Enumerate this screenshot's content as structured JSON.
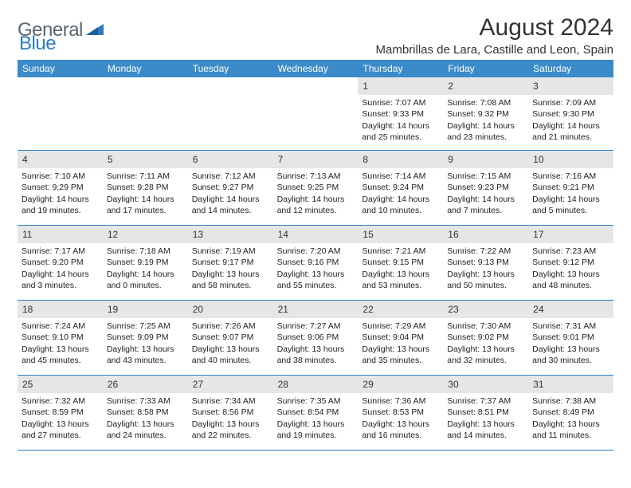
{
  "logo": {
    "text1": "General",
    "text2": "Blue"
  },
  "title": "August 2024",
  "location": "Mambrillas de Lara, Castille and Leon, Spain",
  "colors": {
    "header_bg": "#3b8bc9",
    "row_border": "#2d7cc0",
    "daynum_bg": "#e6e6e6",
    "text": "#222222",
    "logo_gray": "#5a6770",
    "logo_blue": "#2d7cc0"
  },
  "daynames": [
    "Sunday",
    "Monday",
    "Tuesday",
    "Wednesday",
    "Thursday",
    "Friday",
    "Saturday"
  ],
  "weeks": [
    [
      {
        "empty": true
      },
      {
        "empty": true
      },
      {
        "empty": true
      },
      {
        "empty": true
      },
      {
        "n": "1",
        "sr": "7:07 AM",
        "ss": "9:33 PM",
        "dl": "14 hours and 25 minutes."
      },
      {
        "n": "2",
        "sr": "7:08 AM",
        "ss": "9:32 PM",
        "dl": "14 hours and 23 minutes."
      },
      {
        "n": "3",
        "sr": "7:09 AM",
        "ss": "9:30 PM",
        "dl": "14 hours and 21 minutes."
      }
    ],
    [
      {
        "n": "4",
        "sr": "7:10 AM",
        "ss": "9:29 PM",
        "dl": "14 hours and 19 minutes."
      },
      {
        "n": "5",
        "sr": "7:11 AM",
        "ss": "9:28 PM",
        "dl": "14 hours and 17 minutes."
      },
      {
        "n": "6",
        "sr": "7:12 AM",
        "ss": "9:27 PM",
        "dl": "14 hours and 14 minutes."
      },
      {
        "n": "7",
        "sr": "7:13 AM",
        "ss": "9:25 PM",
        "dl": "14 hours and 12 minutes."
      },
      {
        "n": "8",
        "sr": "7:14 AM",
        "ss": "9:24 PM",
        "dl": "14 hours and 10 minutes."
      },
      {
        "n": "9",
        "sr": "7:15 AM",
        "ss": "9:23 PM",
        "dl": "14 hours and 7 minutes."
      },
      {
        "n": "10",
        "sr": "7:16 AM",
        "ss": "9:21 PM",
        "dl": "14 hours and 5 minutes."
      }
    ],
    [
      {
        "n": "11",
        "sr": "7:17 AM",
        "ss": "9:20 PM",
        "dl": "14 hours and 3 minutes."
      },
      {
        "n": "12",
        "sr": "7:18 AM",
        "ss": "9:19 PM",
        "dl": "14 hours and 0 minutes."
      },
      {
        "n": "13",
        "sr": "7:19 AM",
        "ss": "9:17 PM",
        "dl": "13 hours and 58 minutes."
      },
      {
        "n": "14",
        "sr": "7:20 AM",
        "ss": "9:16 PM",
        "dl": "13 hours and 55 minutes."
      },
      {
        "n": "15",
        "sr": "7:21 AM",
        "ss": "9:15 PM",
        "dl": "13 hours and 53 minutes."
      },
      {
        "n": "16",
        "sr": "7:22 AM",
        "ss": "9:13 PM",
        "dl": "13 hours and 50 minutes."
      },
      {
        "n": "17",
        "sr": "7:23 AM",
        "ss": "9:12 PM",
        "dl": "13 hours and 48 minutes."
      }
    ],
    [
      {
        "n": "18",
        "sr": "7:24 AM",
        "ss": "9:10 PM",
        "dl": "13 hours and 45 minutes."
      },
      {
        "n": "19",
        "sr": "7:25 AM",
        "ss": "9:09 PM",
        "dl": "13 hours and 43 minutes."
      },
      {
        "n": "20",
        "sr": "7:26 AM",
        "ss": "9:07 PM",
        "dl": "13 hours and 40 minutes."
      },
      {
        "n": "21",
        "sr": "7:27 AM",
        "ss": "9:06 PM",
        "dl": "13 hours and 38 minutes."
      },
      {
        "n": "22",
        "sr": "7:29 AM",
        "ss": "9:04 PM",
        "dl": "13 hours and 35 minutes."
      },
      {
        "n": "23",
        "sr": "7:30 AM",
        "ss": "9:02 PM",
        "dl": "13 hours and 32 minutes."
      },
      {
        "n": "24",
        "sr": "7:31 AM",
        "ss": "9:01 PM",
        "dl": "13 hours and 30 minutes."
      }
    ],
    [
      {
        "n": "25",
        "sr": "7:32 AM",
        "ss": "8:59 PM",
        "dl": "13 hours and 27 minutes."
      },
      {
        "n": "26",
        "sr": "7:33 AM",
        "ss": "8:58 PM",
        "dl": "13 hours and 24 minutes."
      },
      {
        "n": "27",
        "sr": "7:34 AM",
        "ss": "8:56 PM",
        "dl": "13 hours and 22 minutes."
      },
      {
        "n": "28",
        "sr": "7:35 AM",
        "ss": "8:54 PM",
        "dl": "13 hours and 19 minutes."
      },
      {
        "n": "29",
        "sr": "7:36 AM",
        "ss": "8:53 PM",
        "dl": "13 hours and 16 minutes."
      },
      {
        "n": "30",
        "sr": "7:37 AM",
        "ss": "8:51 PM",
        "dl": "13 hours and 14 minutes."
      },
      {
        "n": "31",
        "sr": "7:38 AM",
        "ss": "8:49 PM",
        "dl": "13 hours and 11 minutes."
      }
    ]
  ],
  "labels": {
    "sunrise": "Sunrise:",
    "sunset": "Sunset:",
    "daylight": "Daylight:"
  }
}
